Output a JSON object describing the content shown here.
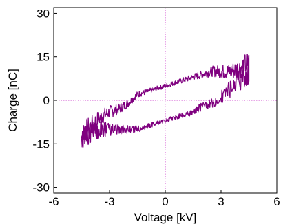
{
  "chart_data": {
    "type": "line",
    "title": "",
    "xlabel": "Voltage [kV]",
    "ylabel": "Charge [nC]",
    "xlim": [
      -6,
      6
    ],
    "ylim": [
      -32,
      32
    ],
    "xticks": [
      -6,
      -3,
      0,
      3,
      6
    ],
    "xtick_labels": [
      "-6",
      "-3",
      "0",
      "3",
      "6"
    ],
    "yticks": [
      -30,
      -15,
      0,
      15,
      30
    ],
    "ytick_labels": [
      "-30",
      "-15",
      "0",
      "15",
      "30"
    ],
    "grid": false,
    "reference_lines": {
      "x": 0,
      "y": 0,
      "color": "#d04fd0",
      "style": "dotted"
    },
    "series": [
      {
        "color": "#7f007f",
        "noise": true,
        "x": [
          -4.5,
          -4.2,
          -3.5,
          -3.0,
          -2.5,
          -2.0,
          -1.5,
          -1.0,
          -0.5,
          0.0,
          0.5,
          1.0,
          1.5,
          2.0,
          2.5,
          3.0,
          3.5,
          4.0,
          4.5,
          4.5,
          4.2,
          3.5,
          3.0,
          2.5,
          2.0,
          1.5,
          1.0,
          0.5,
          0.0,
          -0.5,
          -1.0,
          -1.5,
          -2.0,
          -2.5,
          -3.0,
          -3.5,
          -4.0,
          -4.5
        ],
        "y": [
          -13,
          -10,
          -6,
          -4,
          -3,
          -1,
          2,
          3,
          4,
          5,
          6,
          7,
          8,
          9,
          10,
          10,
          10,
          11,
          13,
          10,
          8,
          4,
          1,
          -1,
          -2,
          -4,
          -5,
          -6,
          -7,
          -8,
          -9,
          -10,
          -10,
          -10,
          -10,
          -10,
          -11,
          -13
        ]
      }
    ]
  }
}
